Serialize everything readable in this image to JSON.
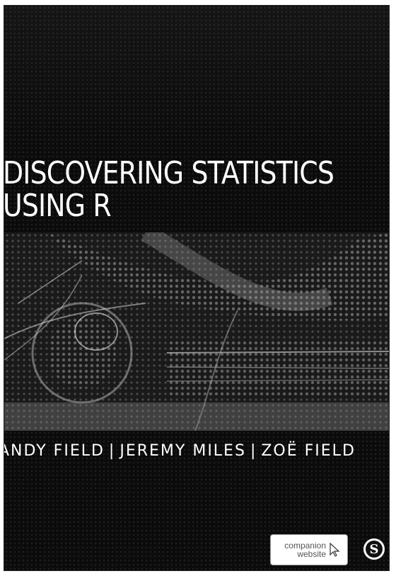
{
  "cover": {
    "title_line1": "DISCOVERING STATISTICS",
    "title_line2": "USING R",
    "authors": [
      "ANDY FIELD",
      "JEREMY MILES",
      "ZOË FIELD"
    ],
    "separator": "|",
    "companion_line1": "companion",
    "companion_line2": "website",
    "publisher_mark": "S",
    "background_color": "#0b0b0b",
    "text_color": "#ffffff"
  }
}
